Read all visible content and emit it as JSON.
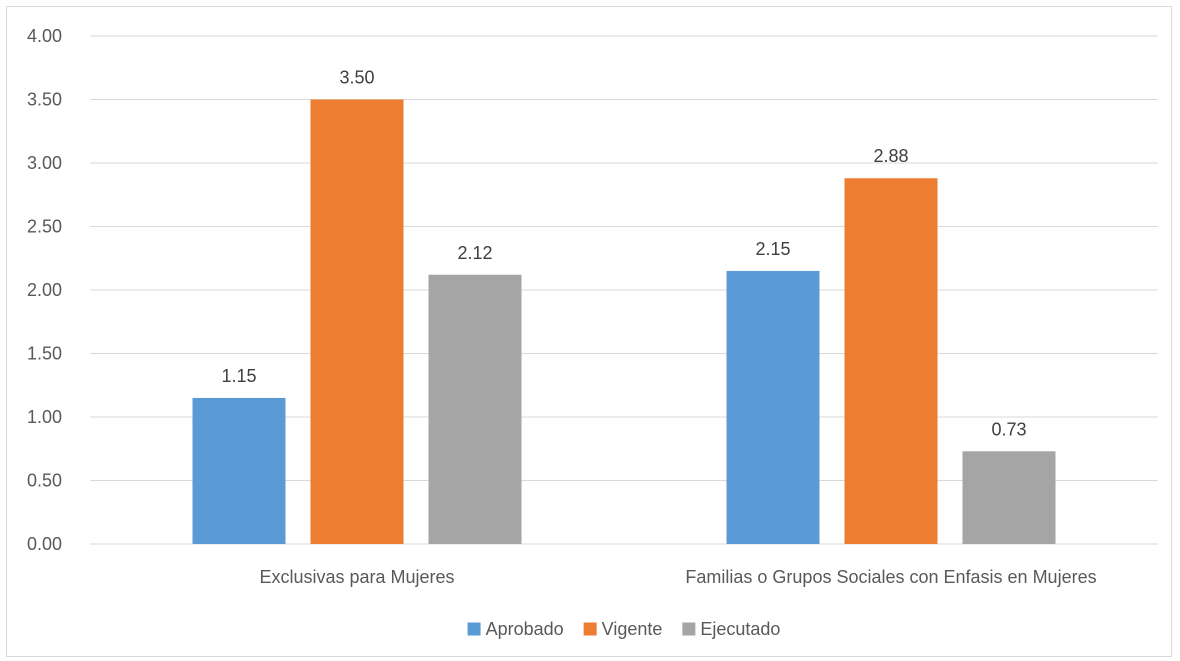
{
  "chart_data": {
    "type": "bar",
    "title": "",
    "xlabel": "",
    "ylabel": "",
    "categories": [
      "Exclusivas para Mujeres",
      "Familias o Grupos Sociales con Enfasis en Mujeres"
    ],
    "series": [
      {
        "name": "Aprobado",
        "color": "#5b9bd5",
        "values": [
          1.15,
          2.15
        ],
        "labels": [
          "1.15",
          "2.15"
        ]
      },
      {
        "name": "Vigente",
        "color": "#ed7d31",
        "values": [
          3.5,
          2.88
        ],
        "labels": [
          "3.50",
          "2.88"
        ]
      },
      {
        "name": "Ejecutado",
        "color": "#a5a5a5",
        "values": [
          2.12,
          0.73
        ],
        "labels": [
          "2.12",
          "0.73"
        ]
      }
    ],
    "ylim": [
      0,
      4
    ],
    "yticks": [
      "0.00",
      "0.50",
      "1.00",
      "1.50",
      "2.00",
      "2.50",
      "3.00",
      "3.50",
      "4.00"
    ],
    "grid": true,
    "legend_position": "bottom",
    "gridline_color": "#d9d9d9"
  }
}
